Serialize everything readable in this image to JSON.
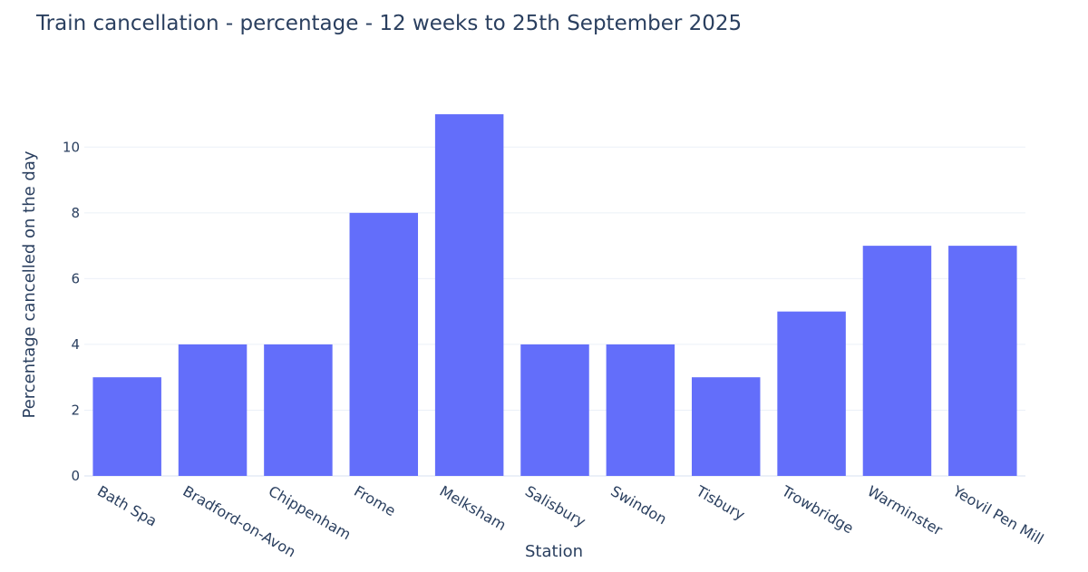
{
  "chart_data": {
    "type": "bar",
    "title": "Train cancellation - percentage -  12 weeks to 25th September 2025",
    "xlabel": "Station",
    "ylabel": "Percentage cancelled on the day",
    "categories": [
      "Bath Spa",
      "Bradford-on-Avon",
      "Chippenham",
      "Frome",
      "Melksham",
      "Salisbury",
      "Swindon",
      "Tisbury",
      "Trowbridge",
      "Warminster",
      "Yeovil Pen Mill"
    ],
    "values": [
      3,
      4,
      4,
      8,
      11,
      4,
      4,
      3,
      5,
      7,
      7
    ],
    "ylim": [
      0,
      11.58
    ],
    "yticks": [
      0,
      2,
      4,
      6,
      8,
      10
    ],
    "grid": true,
    "bar_color": "#636efa"
  }
}
